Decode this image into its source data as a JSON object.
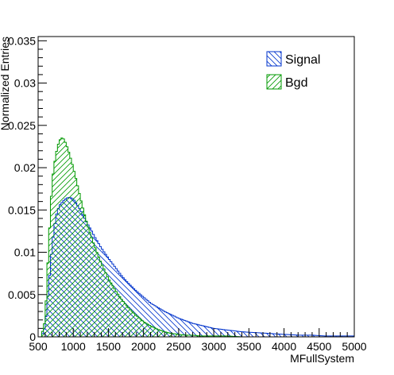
{
  "chart_data": {
    "type": "histogram",
    "xlabel": "MFullSystem",
    "ylabel": "Normalized Entries",
    "xlim": [
      500,
      5000
    ],
    "ylim": [
      0,
      0.0355
    ],
    "x_ticks": [
      500,
      1000,
      1500,
      2000,
      2500,
      3000,
      3500,
      4000,
      4500,
      5000
    ],
    "x_tick_labels": [
      "500",
      "1000",
      "1500",
      "2000",
      "2500",
      "3000",
      "3500",
      "4000",
      "4500",
      "5000"
    ],
    "y_ticks": [
      0,
      0.005,
      0.01,
      0.015,
      0.02,
      0.025,
      0.03,
      0.035
    ],
    "y_tick_labels": [
      "0",
      "0.005",
      "0.01",
      "0.015",
      "0.02",
      "0.025",
      "0.03",
      "0.035"
    ],
    "grid": false,
    "legend_position": "top-right",
    "bin_edges": [
      550,
      5000
    ],
    "series": [
      {
        "name": "Signal",
        "color": "#0033cc",
        "hatch": "back-diagonal",
        "x": [
          550,
          600,
          650,
          700,
          750,
          800,
          850,
          900,
          950,
          1000,
          1050,
          1100,
          1150,
          1200,
          1250,
          1300,
          1350,
          1400,
          1450,
          1500,
          1600,
          1700,
          1800,
          1900,
          2000,
          2100,
          2200,
          2300,
          2400,
          2500,
          2600,
          2700,
          2800,
          2900,
          3000,
          3200,
          3400,
          3600,
          3800,
          4000,
          4200,
          4400,
          4600,
          4800,
          5000
        ],
        "values": [
          0.0001,
          0.0012,
          0.006,
          0.011,
          0.0142,
          0.0155,
          0.016,
          0.0164,
          0.0165,
          0.0163,
          0.0157,
          0.015,
          0.0142,
          0.0134,
          0.0127,
          0.0119,
          0.0112,
          0.0105,
          0.0099,
          0.0093,
          0.0082,
          0.0071,
          0.0062,
          0.0054,
          0.0047,
          0.004,
          0.0035,
          0.003,
          0.0026,
          0.0022,
          0.0019,
          0.0016,
          0.0014,
          0.0012,
          0.001,
          0.0008,
          0.0006,
          0.0005,
          0.0004,
          0.0003,
          0.0002,
          0.0002,
          0.0001,
          0.0001,
          0.0001
        ]
      },
      {
        "name": "Bgd",
        "color": "#009900",
        "hatch": "forward-diagonal",
        "x": [
          550,
          600,
          650,
          700,
          750,
          800,
          850,
          900,
          950,
          1000,
          1050,
          1100,
          1150,
          1200,
          1250,
          1300,
          1350,
          1400,
          1450,
          1500,
          1600,
          1700,
          1800,
          1900,
          2000,
          2100,
          2200,
          2300,
          2400,
          2500,
          2600,
          2700,
          2800,
          2900,
          3000,
          3200,
          3400,
          3600,
          3800,
          4000,
          4200,
          4400,
          4600,
          4800,
          5000
        ],
        "values": [
          0.0002,
          0.002,
          0.011,
          0.0185,
          0.0215,
          0.0232,
          0.0236,
          0.0228,
          0.0215,
          0.02,
          0.0183,
          0.0165,
          0.0148,
          0.0133,
          0.012,
          0.0108,
          0.0097,
          0.0087,
          0.0078,
          0.0069,
          0.0055,
          0.0043,
          0.0033,
          0.0025,
          0.0018,
          0.0013,
          0.0009,
          0.0006,
          0.0004,
          0.0003,
          0.0002,
          0.0002,
          0.0001,
          0.0001,
          0.0001,
          0.0001,
          0.0,
          0.0,
          0.0,
          0.0,
          0.0,
          0.0,
          0.0,
          0.0,
          0.0
        ]
      }
    ]
  }
}
